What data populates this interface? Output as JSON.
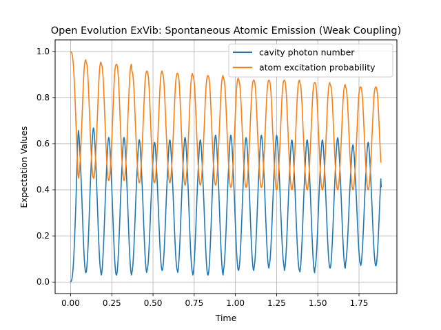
{
  "chart_data": {
    "type": "line",
    "title": "Open Evolution ExVib: Spontaneous Atomic Emission (Weak Coupling)",
    "xlabel": "Time",
    "ylabel": "Expectation Values",
    "xlim": [
      -0.094,
      1.98
    ],
    "ylim": [
      -0.05,
      1.05
    ],
    "xticks": [
      0.0,
      0.25,
      0.5,
      0.75,
      1.0,
      1.25,
      1.5,
      1.75
    ],
    "xtick_labels": [
      "0.00",
      "0.25",
      "0.50",
      "0.75",
      "1.00",
      "1.25",
      "1.50",
      "1.75"
    ],
    "yticks": [
      0.0,
      0.2,
      0.4,
      0.6,
      0.8,
      1.0
    ],
    "ytick_labels": [
      "0.0",
      "0.2",
      "0.4",
      "0.6",
      "0.8",
      "1.0"
    ],
    "grid": true,
    "legend_position": "top-right",
    "period": 0.0926,
    "t_end": 1.885,
    "series": [
      {
        "name": "cavity photon number",
        "color": "#1f77b4",
        "start_value": 0.0,
        "end_value": 0.41,
        "peak_values": [
          0.64,
          0.65,
          0.61,
          0.61,
          0.6,
          0.59,
          0.6,
          0.61,
          0.6,
          0.62,
          0.62,
          0.61,
          0.62,
          0.62,
          0.6,
          0.6,
          0.6,
          0.61,
          0.58,
          0.59
        ],
        "trough_values": [
          0.04,
          0.04,
          0.03,
          0.03,
          0.04,
          0.05,
          0.05,
          0.04,
          0.03,
          0.03,
          0.05,
          0.05,
          0.06,
          0.07,
          0.05,
          0.04,
          0.06,
          0.06,
          0.08,
          0.07
        ]
      },
      {
        "name": "atom excitation probability",
        "color": "#ff7f0e",
        "start_value": 1.0,
        "end_value": 0.52,
        "peak_values": [
          0.98,
          0.97,
          0.96,
          0.96,
          0.93,
          0.93,
          0.92,
          0.92,
          0.91,
          0.91,
          0.9,
          0.89,
          0.89,
          0.89,
          0.89,
          0.88,
          0.88,
          0.87,
          0.86,
          0.86
        ],
        "trough_values": [
          0.45,
          0.45,
          0.44,
          0.44,
          0.43,
          0.43,
          0.43,
          0.42,
          0.42,
          0.42,
          0.41,
          0.41,
          0.41,
          0.4,
          0.4,
          0.4,
          0.4,
          0.4,
          0.4,
          0.4
        ]
      }
    ]
  }
}
